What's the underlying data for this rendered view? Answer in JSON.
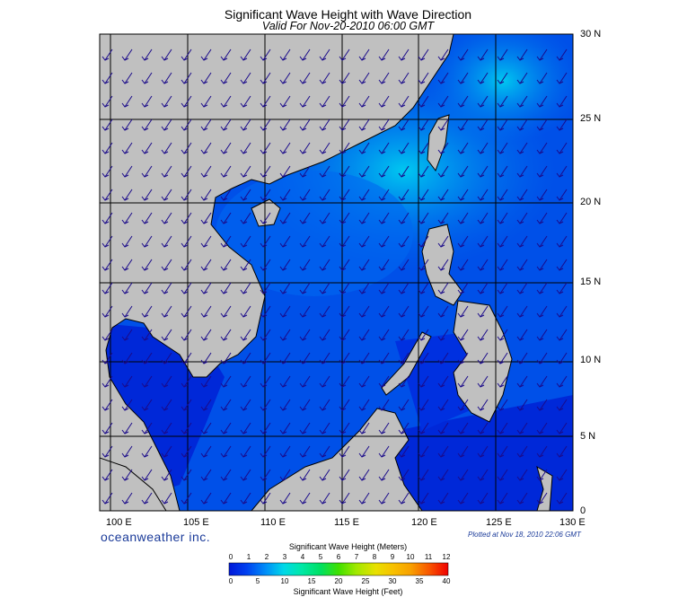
{
  "header": {
    "title": "Significant Wave Height with Wave Direction",
    "subtitle": "Valid For Nov-20-2010 06:00 GMT"
  },
  "axes": {
    "lat_labels": [
      "30 N",
      "25 N",
      "20 N",
      "15 N",
      "10 N",
      "5 N",
      "0"
    ],
    "lon_labels": [
      "100 E",
      "105 E",
      "110 E",
      "115 E",
      "120 E",
      "125 E",
      "130 E"
    ]
  },
  "footer": {
    "brand": "oceanweather inc.",
    "plotted": "Plotted at Nov 18, 2010 22:06 GMT"
  },
  "legend": {
    "meters_title": "Significant Wave Height (Meters)",
    "meters_ticks": [
      "0",
      "1",
      "2",
      "3",
      "4",
      "5",
      "6",
      "7",
      "8",
      "9",
      "10",
      "11",
      "12"
    ],
    "feet_title": "Significant Wave Height (Feet)",
    "feet_ticks": [
      "0",
      "5",
      "10",
      "15",
      "20",
      "25",
      "30",
      "35",
      "40"
    ],
    "colors": [
      "#0018d8",
      "#0040f0",
      "#0068f8",
      "#0090f8",
      "#00b8f0",
      "#00d8e8",
      "#00e8a8",
      "#00e060",
      "#40e000",
      "#a0e800",
      "#e8e000",
      "#f8a000",
      "#f85000",
      "#f00000"
    ]
  },
  "colors": {
    "land": "#c0c0c0",
    "sea_deep": "#0018c8",
    "sea_mid": "#0050e8",
    "sea_light": "#00b8f0",
    "arrow": "#1a0a8a",
    "brand": "#1a3a99"
  }
}
